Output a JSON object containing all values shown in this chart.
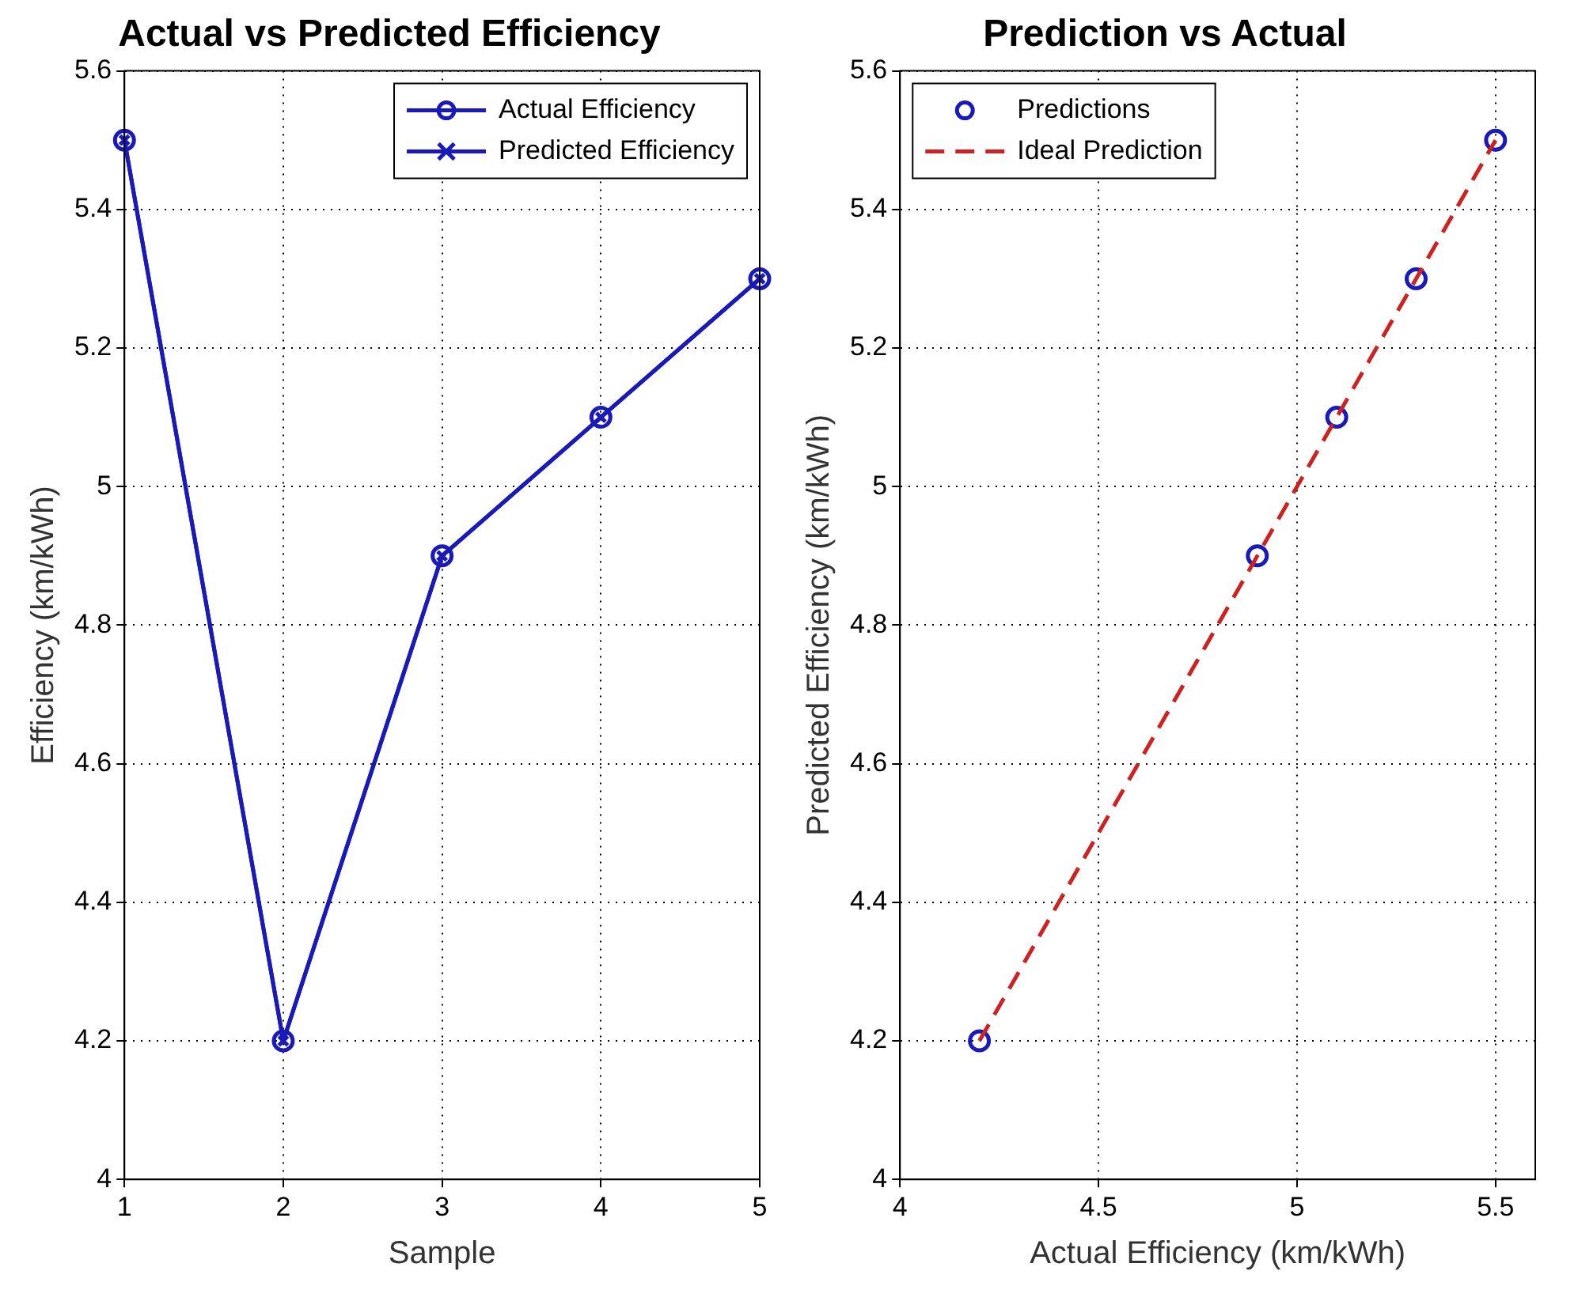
{
  "chart_data": [
    {
      "type": "line",
      "title": "Actual vs Predicted Efficiency",
      "xlabel": "Sample",
      "ylabel": "Efficiency (km/kWh)",
      "x": [
        1,
        2,
        3,
        4,
        5
      ],
      "series": [
        {
          "name": "Actual Efficiency",
          "color": "#1a1ab8",
          "values": [
            5.5,
            4.2,
            4.9,
            5.1,
            5.3
          ],
          "marker": "circle"
        },
        {
          "name": "Predicted Efficiency",
          "color": "#1a1ab8",
          "values": [
            5.5,
            4.2,
            4.9,
            5.1,
            5.3
          ],
          "marker": "cross"
        }
      ],
      "xlim": [
        1,
        5
      ],
      "xticks": [
        1,
        2,
        3,
        4,
        5
      ],
      "ylim": [
        4,
        5.6
      ],
      "yticks": [
        4,
        4.2,
        4.4,
        4.6,
        4.8,
        5,
        5.2,
        5.4,
        5.6
      ],
      "grid": true,
      "legend": "top right",
      "line_style": "solid"
    },
    {
      "type": "scatter",
      "title": "Prediction vs Actual",
      "xlabel": "Actual Efficiency (km/kWh)",
      "ylabel": "Predicted Efficiency (km/kWh)",
      "x": [
        4.2,
        4.9,
        5.1,
        5.3,
        5.5
      ],
      "series": [
        {
          "name": "Predictions",
          "color": "#1a1ab8",
          "values": [
            4.2,
            4.9,
            5.1,
            5.3,
            5.5
          ],
          "marker": "circle"
        },
        {
          "name": "Ideal Prediction",
          "type": "line",
          "color": "#cc2222",
          "x": [
            4.2,
            5.5
          ],
          "values": [
            4.2,
            5.5
          ],
          "marker": "none",
          "line_style": "dashed"
        }
      ],
      "xlim": [
        4,
        5.6
      ],
      "xticks": [
        4,
        4.5,
        5,
        5.5
      ],
      "ylim": [
        4,
        5.6
      ],
      "yticks": [
        4,
        4.2,
        4.4,
        4.6,
        4.8,
        5,
        5.2,
        5.4,
        5.6
      ],
      "grid": true,
      "legend": "top left"
    }
  ]
}
